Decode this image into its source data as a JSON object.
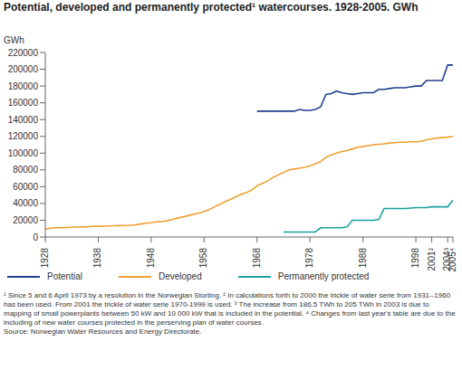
{
  "chart_data": {
    "type": "line",
    "title": "Potential, developed and permanently protected¹ watercourses. 1928-2005. GWh",
    "y_label": "GWh",
    "x": [
      1928,
      1929,
      1930,
      1931,
      1932,
      1933,
      1934,
      1935,
      1936,
      1937,
      1938,
      1939,
      1940,
      1941,
      1942,
      1943,
      1944,
      1945,
      1946,
      1947,
      1948,
      1949,
      1950,
      1951,
      1952,
      1953,
      1954,
      1955,
      1956,
      1957,
      1958,
      1959,
      1960,
      1961,
      1962,
      1963,
      1964,
      1965,
      1966,
      1967,
      1968,
      1969,
      1970,
      1971,
      1972,
      1973,
      1974,
      1975,
      1976,
      1977,
      1978,
      1979,
      1980,
      1981,
      1982,
      1983,
      1984,
      1985,
      1986,
      1987,
      1988,
      1989,
      1990,
      1991,
      1992,
      1993,
      1994,
      1995,
      1996,
      1997,
      1998,
      1999,
      2000,
      2001,
      2002,
      2003,
      2004,
      2005
    ],
    "series": [
      {
        "name": "Potential",
        "color": "#1f3f8f",
        "values": [
          null,
          null,
          null,
          null,
          null,
          null,
          null,
          null,
          null,
          null,
          null,
          null,
          null,
          null,
          null,
          null,
          null,
          null,
          null,
          null,
          null,
          null,
          null,
          null,
          null,
          null,
          null,
          null,
          null,
          null,
          null,
          null,
          null,
          null,
          null,
          null,
          null,
          null,
          null,
          null,
          150000,
          150000,
          150000,
          150000,
          150000,
          150000,
          150000,
          150000,
          152000,
          151000,
          151000,
          152000,
          155000,
          170000,
          171000,
          174000,
          172000,
          171000,
          170000,
          171000,
          172000,
          172000,
          172000,
          176000,
          176000,
          177000,
          178000,
          178000,
          178000,
          179000,
          180000,
          180000,
          186500,
          186500,
          186500,
          186500,
          205000,
          205000
        ]
      },
      {
        "name": "Developed",
        "color": "#f0a030",
        "values": [
          9500,
          10500,
          11000,
          11200,
          11400,
          11600,
          11800,
          12000,
          12300,
          12600,
          12800,
          13000,
          13200,
          13400,
          13600,
          13800,
          14000,
          14500,
          15500,
          16500,
          17000,
          18000,
          18500,
          19500,
          21000,
          22500,
          24000,
          25500,
          27000,
          28500,
          30500,
          33000,
          36000,
          39000,
          42000,
          45000,
          48000,
          51000,
          53000,
          56000,
          61000,
          64000,
          67000,
          71000,
          74000,
          77000,
          80000,
          81000,
          82000,
          83000,
          85000,
          87000,
          90000,
          95000,
          98000,
          100000,
          102000,
          103000,
          105000,
          107000,
          108000,
          109000,
          110000,
          110500,
          111000,
          112000,
          112500,
          113000,
          113000,
          113500,
          113500,
          114000,
          116000,
          117000,
          118000,
          118500,
          119000,
          120000
        ]
      },
      {
        "name": "Permanently protected",
        "color": "#1aa0a0",
        "values": [
          null,
          null,
          null,
          null,
          null,
          null,
          null,
          null,
          null,
          null,
          null,
          null,
          null,
          null,
          null,
          null,
          null,
          null,
          null,
          null,
          null,
          null,
          null,
          null,
          null,
          null,
          null,
          null,
          null,
          null,
          null,
          null,
          null,
          null,
          null,
          null,
          null,
          null,
          null,
          null,
          null,
          null,
          null,
          null,
          null,
          6000,
          6000,
          6000,
          6000,
          6000,
          6000,
          6000,
          11000,
          11000,
          11000,
          11000,
          11000,
          12000,
          20000,
          20000,
          20000,
          20000,
          20000,
          21000,
          34000,
          34000,
          34000,
          34000,
          34000,
          34500,
          35000,
          35000,
          35000,
          36000,
          36000,
          36000,
          36000,
          44000
        ]
      }
    ],
    "xlim": [
      1928,
      2005
    ],
    "xticks": [
      1928,
      1938,
      1948,
      1958,
      1968,
      1978,
      1988,
      1998,
      {
        "value": 2001,
        "label": "2001²"
      },
      {
        "value": 2004,
        "label": "2004³"
      },
      {
        "value": 2005,
        "label": "2005⁴"
      }
    ],
    "ylim": [
      0,
      220000
    ],
    "yticks": [
      0,
      20000,
      40000,
      60000,
      80000,
      100000,
      120000,
      140000,
      160000,
      180000,
      200000,
      220000
    ],
    "grid": false,
    "legend": "bottom",
    "notes": "¹ Since 5 and 6 April 1973 by a resolution in the Norwegian Storting. ² In calculations forth to 2000 the trickle of water serie from 1931--1960 has been used. From 2001 the trickle of water serie 1970-1999 is used. ³ The increase from 186.5 TWh to 205 TWh in 2003 is due to mapping of small powerplants between 50 kW and 10 000 kW that is included in the potential. ⁴ Changes from last year's table are due to the including of new water courses protected in the perserving plan of water courses.",
    "source": "Source: Norwegian Water Resources and Energy Directorate."
  }
}
